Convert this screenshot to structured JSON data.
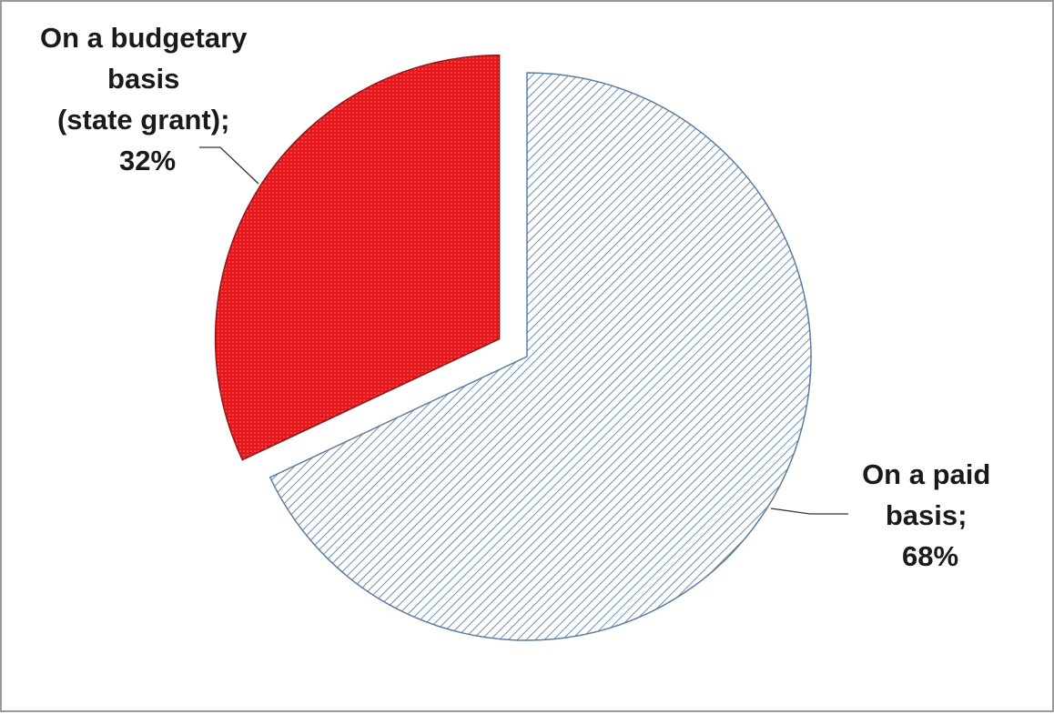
{
  "chart_data": {
    "type": "pie",
    "title": "",
    "slices": [
      {
        "name": "On a budgetary basis (state grant)",
        "value": 32,
        "label_lines": [
          "On a budgetary",
          "basis",
          "(state grant);",
          "32%"
        ],
        "fill": "#e8161b",
        "pattern": "dots",
        "exploded": true
      },
      {
        "name": "On a paid basis",
        "value": 68,
        "label_lines": [
          "On a paid",
          "basis;",
          "68%"
        ],
        "fill": "#ffffff",
        "pattern": "diagonal-stripes",
        "stroke": "#5a7da3",
        "exploded": false
      }
    ],
    "legend": "none",
    "start_angle": "12 o'clock",
    "direction": "clockwise from paid slice"
  }
}
